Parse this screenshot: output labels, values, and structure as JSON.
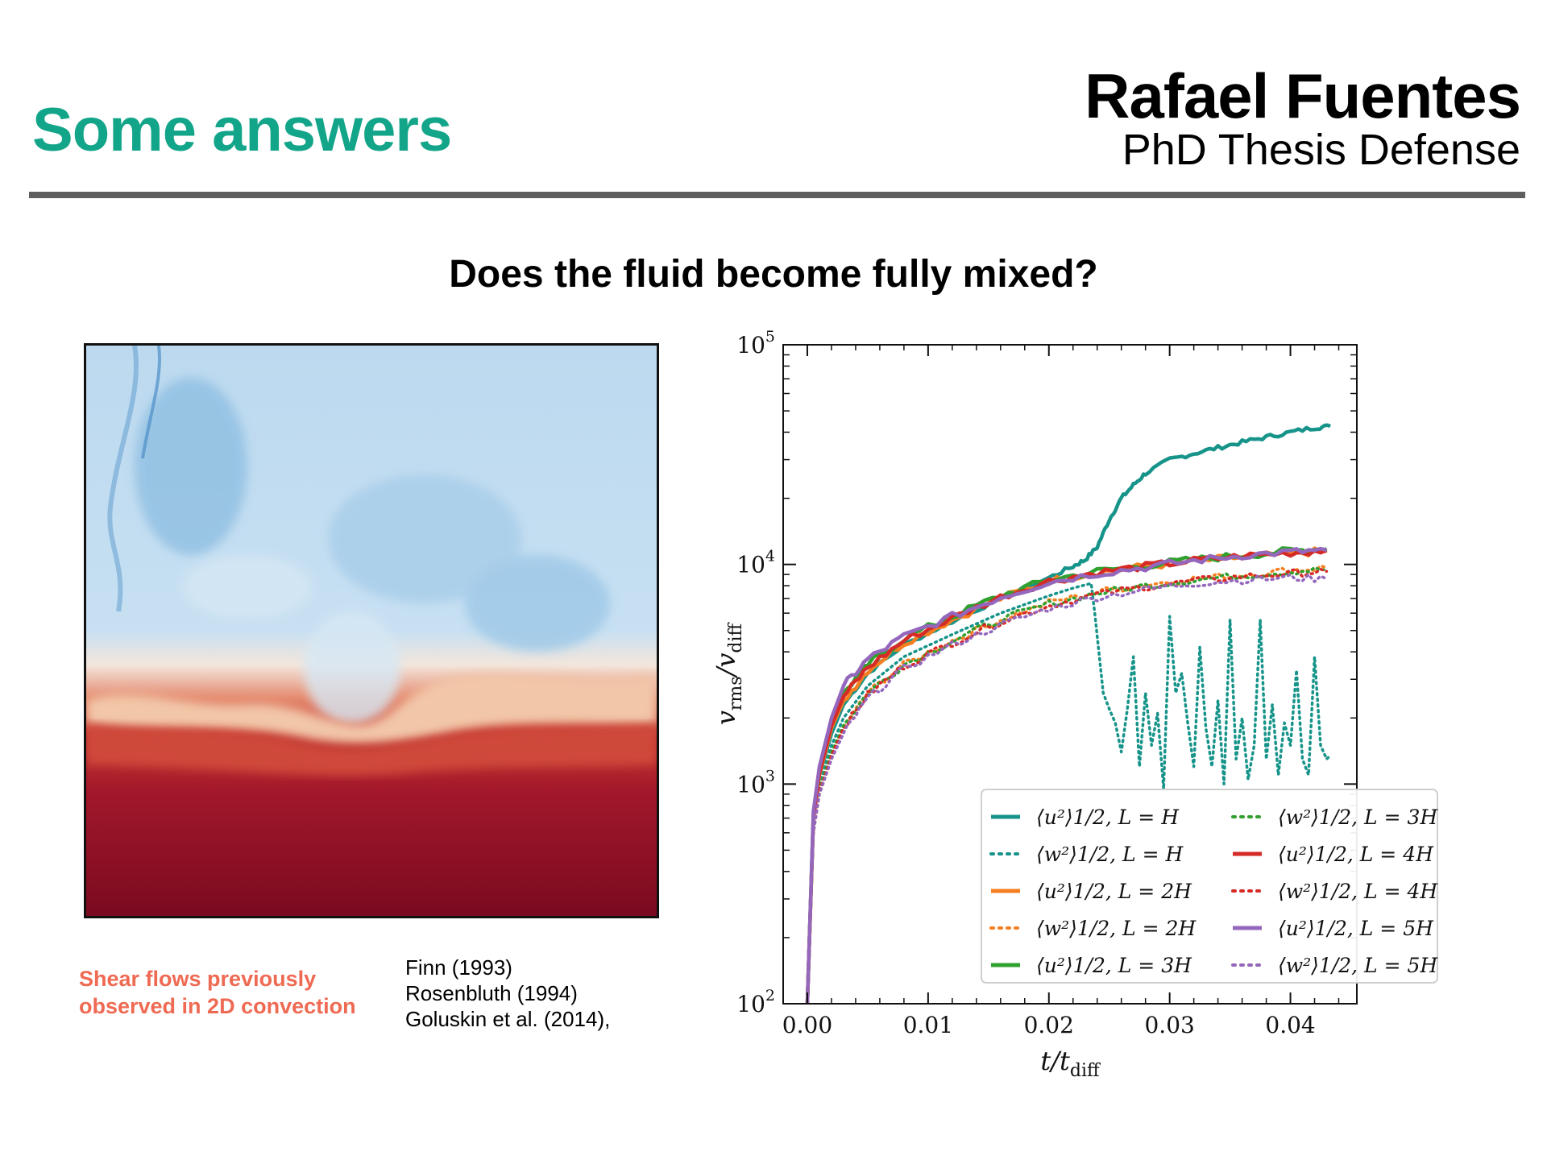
{
  "slide": {
    "title": "Some answers",
    "author": "Rafael Fuentes",
    "subtitle": "PhD Thesis Defense",
    "question": "Does the fluid become fully mixed?"
  },
  "left_panel": {
    "caption_lines": [
      "Shear flows previously",
      "observed in 2D convection"
    ],
    "references": [
      "Finn (1993)",
      "Rosenbluth  (1994)",
      "Goluskin et al. (2014),"
    ]
  },
  "colors": {
    "title_accent": "#12a589",
    "caption_accent": "#ef6a53",
    "teal": "#17948a",
    "orange": "#f57f20",
    "green": "#30a02e",
    "red": "#d62a27",
    "purple": "#9467bd",
    "sim_cold": "#b9d8ee",
    "sim_hot": "#7a0c20"
  },
  "chart_data": {
    "type": "line",
    "xlabel": "t/t_diff",
    "ylabel": "v_rms/v_diff",
    "xlim": [
      -0.002,
      0.0455
    ],
    "ylim": [
      100,
      100000
    ],
    "yscale": "log",
    "xticks": [
      0.0,
      0.01,
      0.02,
      0.03,
      0.04
    ],
    "xtick_labels": [
      "0.00",
      "0.01",
      "0.02",
      "0.03",
      "0.04"
    ],
    "ytick_labels": [
      "10^2",
      "10^3",
      "10^4",
      "10^5"
    ],
    "grid": false,
    "legend_position": "lower-right",
    "series": [
      {
        "name": "⟨u²⟩^1/2, L = H",
        "color": "teal",
        "style": "solid",
        "x": [
          0,
          0.0005,
          0.001,
          0.002,
          0.003,
          0.005,
          0.008,
          0.012,
          0.016,
          0.02,
          0.022,
          0.023,
          0.024,
          0.025,
          0.026,
          0.027,
          0.028,
          0.03,
          0.032,
          0.034,
          0.036,
          0.038,
          0.04,
          0.042,
          0.0433
        ],
        "y": [
          100,
          700,
          1100,
          1700,
          2300,
          3200,
          4300,
          5500,
          7000,
          8700,
          9800,
          10500,
          12000,
          16000,
          20000,
          23000,
          26000,
          30000,
          32000,
          34000,
          36000,
          38000,
          40000,
          42000,
          42500
        ]
      },
      {
        "name": "⟨w²⟩^1/2, L = H",
        "color": "teal",
        "style": "dotted",
        "x": [
          0,
          0.0005,
          0.001,
          0.002,
          0.003,
          0.005,
          0.008,
          0.012,
          0.016,
          0.02,
          0.022,
          0.0235,
          0.0238,
          0.0245,
          0.025,
          0.0255,
          0.026,
          0.0265,
          0.027,
          0.0275,
          0.028,
          0.0285,
          0.029,
          0.0295,
          0.03,
          0.0305,
          0.031,
          0.0315,
          0.032,
          0.0325,
          0.033,
          0.0335,
          0.034,
          0.0345,
          0.035,
          0.0355,
          0.036,
          0.0365,
          0.037,
          0.0375,
          0.038,
          0.0385,
          0.039,
          0.0395,
          0.04,
          0.0405,
          0.041,
          0.0415,
          0.042,
          0.0425,
          0.043,
          0.0433
        ],
        "y": [
          100,
          650,
          1000,
          1500,
          2000,
          2800,
          3800,
          4800,
          6000,
          7200,
          7800,
          8200,
          6000,
          2600,
          2200,
          1900,
          1400,
          2200,
          3800,
          1200,
          2600,
          1500,
          2100,
          950,
          5800,
          2600,
          3200,
          1900,
          1200,
          4200,
          1800,
          1200,
          2400,
          1000,
          5600,
          1300,
          2000,
          1050,
          1500,
          5600,
          1300,
          2300,
          1100,
          1900,
          1500,
          3300,
          1300,
          1100,
          3800,
          1500,
          1300,
          1350
        ]
      },
      {
        "name": "⟨u²⟩^1/2, L = 2H",
        "color": "orange",
        "style": "solid",
        "x": [
          0,
          0.0005,
          0.001,
          0.002,
          0.003,
          0.005,
          0.008,
          0.012,
          0.016,
          0.02,
          0.024,
          0.028,
          0.032,
          0.036,
          0.04,
          0.043
        ],
        "y": [
          100,
          700,
          1100,
          1800,
          2400,
          3300,
          4400,
          5600,
          7000,
          8400,
          9200,
          9800,
          10300,
          10800,
          11200,
          11500
        ]
      },
      {
        "name": "⟨w²⟩^1/2, L = 2H",
        "color": "orange",
        "style": "dotted",
        "x": [
          0,
          0.0005,
          0.001,
          0.002,
          0.003,
          0.005,
          0.008,
          0.012,
          0.016,
          0.02,
          0.024,
          0.028,
          0.032,
          0.036,
          0.04,
          0.043
        ],
        "y": [
          100,
          600,
          900,
          1300,
          1800,
          2600,
          3500,
          4500,
          5600,
          6700,
          7500,
          8100,
          8600,
          9000,
          9400,
          9700
        ]
      },
      {
        "name": "⟨u²⟩^1/2, L = 3H",
        "color": "green",
        "style": "solid",
        "x": [
          0,
          0.0005,
          0.001,
          0.002,
          0.003,
          0.005,
          0.008,
          0.012,
          0.016,
          0.02,
          0.024,
          0.028,
          0.032,
          0.036,
          0.04,
          0.043
        ],
        "y": [
          100,
          720,
          1150,
          1900,
          2600,
          3500,
          4600,
          5800,
          7200,
          8500,
          9300,
          9900,
          10500,
          11000,
          11500,
          11800
        ]
      },
      {
        "name": "⟨w²⟩^1/2, L = 3H",
        "color": "green",
        "style": "dotted",
        "x": [
          0,
          0.0005,
          0.001,
          0.002,
          0.003,
          0.005,
          0.008,
          0.012,
          0.016,
          0.02,
          0.024,
          0.028,
          0.032,
          0.036,
          0.04,
          0.043
        ],
        "y": [
          100,
          620,
          950,
          1400,
          1850,
          2600,
          3500,
          4500,
          5600,
          6600,
          7400,
          8000,
          8500,
          8900,
          9300,
          9500
        ]
      },
      {
        "name": "⟨u²⟩^1/2, L = 4H",
        "color": "red",
        "style": "solid",
        "x": [
          0,
          0.0005,
          0.001,
          0.002,
          0.003,
          0.005,
          0.008,
          0.012,
          0.016,
          0.02,
          0.024,
          0.028,
          0.032,
          0.036,
          0.04,
          0.043
        ],
        "y": [
          100,
          710,
          1120,
          1850,
          2500,
          3400,
          4500,
          5700,
          7100,
          8400,
          9200,
          9800,
          10400,
          10900,
          11300,
          11600
        ]
      },
      {
        "name": "⟨w²⟩^1/2, L = 4H",
        "color": "red",
        "style": "dotted",
        "x": [
          0,
          0.0005,
          0.001,
          0.002,
          0.003,
          0.005,
          0.008,
          0.012,
          0.016,
          0.02,
          0.024,
          0.028,
          0.032,
          0.036,
          0.04,
          0.043
        ],
        "y": [
          100,
          610,
          920,
          1350,
          1800,
          2550,
          3450,
          4400,
          5500,
          6500,
          7300,
          7900,
          8400,
          8800,
          9100,
          9300
        ]
      },
      {
        "name": "⟨u²⟩^1/2, L = 5H",
        "color": "purple",
        "style": "solid",
        "x": [
          0,
          0.0005,
          0.001,
          0.002,
          0.003,
          0.005,
          0.008,
          0.012,
          0.016,
          0.02,
          0.024,
          0.028,
          0.032,
          0.036,
          0.04,
          0.043
        ],
        "y": [
          100,
          750,
          1200,
          2000,
          2800,
          3700,
          4700,
          5800,
          7100,
          8300,
          9100,
          9700,
          10400,
          11000,
          11400,
          11600
        ]
      },
      {
        "name": "⟨w²⟩^1/2, L = 5H",
        "color": "purple",
        "style": "dotted",
        "x": [
          0,
          0.0005,
          0.001,
          0.002,
          0.003,
          0.005,
          0.008,
          0.012,
          0.016,
          0.02,
          0.024,
          0.028,
          0.032,
          0.036,
          0.04,
          0.043
        ],
        "y": [
          100,
          600,
          900,
          1300,
          1700,
          2450,
          3350,
          4300,
          5300,
          6300,
          7100,
          7700,
          8200,
          8500,
          8700,
          8600
        ]
      }
    ],
    "legend_entries": [
      {
        "label": "⟨u²⟩1/2, L = H",
        "color": "teal",
        "style": "solid"
      },
      {
        "label": "⟨w²⟩1/2, L = H",
        "color": "teal",
        "style": "dotted"
      },
      {
        "label": "⟨u²⟩1/2, L = 2H",
        "color": "orange",
        "style": "solid"
      },
      {
        "label": "⟨w²⟩1/2, L = 2H",
        "color": "orange",
        "style": "dotted"
      },
      {
        "label": "⟨u²⟩1/2, L = 3H",
        "color": "green",
        "style": "solid"
      },
      {
        "label": "⟨w²⟩1/2, L = 3H",
        "color": "green",
        "style": "dotted"
      },
      {
        "label": "⟨u²⟩1/2, L = 4H",
        "color": "red",
        "style": "solid"
      },
      {
        "label": "⟨w²⟩1/2, L = 4H",
        "color": "red",
        "style": "dotted"
      },
      {
        "label": "⟨u²⟩1/2, L = 5H",
        "color": "purple",
        "style": "solid"
      },
      {
        "label": "⟨w²⟩1/2, L = 5H",
        "color": "purple",
        "style": "dotted"
      }
    ]
  }
}
